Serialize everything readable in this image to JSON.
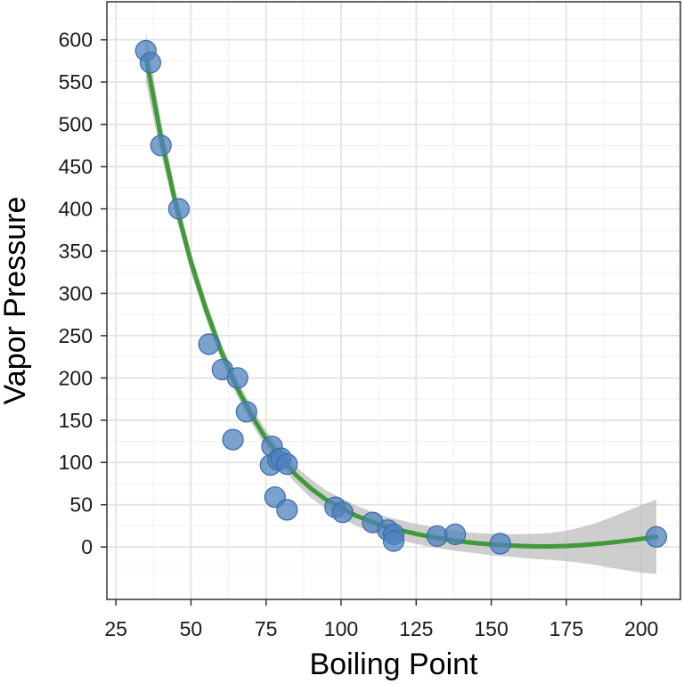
{
  "chart_data": {
    "type": "scatter",
    "title": "",
    "xlabel": "Boiling Point",
    "ylabel": "Vapor Pressure",
    "xlim": [
      22,
      213
    ],
    "ylim": [
      -62,
      645
    ],
    "x_ticks": [
      25,
      50,
      75,
      100,
      125,
      150,
      175,
      200
    ],
    "y_ticks": [
      0,
      50,
      100,
      150,
      200,
      250,
      300,
      350,
      400,
      450,
      500,
      550,
      600
    ],
    "grid": true,
    "legend": "none",
    "points": [
      {
        "x": 35,
        "y": 587
      },
      {
        "x": 36.5,
        "y": 573
      },
      {
        "x": 40,
        "y": 475
      },
      {
        "x": 46,
        "y": 400
      },
      {
        "x": 56,
        "y": 240
      },
      {
        "x": 60.5,
        "y": 210
      },
      {
        "x": 65.5,
        "y": 200
      },
      {
        "x": 64,
        "y": 127
      },
      {
        "x": 68.5,
        "y": 160
      },
      {
        "x": 77,
        "y": 119
      },
      {
        "x": 76.5,
        "y": 97
      },
      {
        "x": 79,
        "y": 103
      },
      {
        "x": 80,
        "y": 105
      },
      {
        "x": 82,
        "y": 98
      },
      {
        "x": 78,
        "y": 59
      },
      {
        "x": 82,
        "y": 44
      },
      {
        "x": 98,
        "y": 47
      },
      {
        "x": 100.5,
        "y": 41
      },
      {
        "x": 110.5,
        "y": 29
      },
      {
        "x": 115.5,
        "y": 20
      },
      {
        "x": 117.5,
        "y": 15
      },
      {
        "x": 117.5,
        "y": 7
      },
      {
        "x": 132,
        "y": 13
      },
      {
        "x": 138,
        "y": 15
      },
      {
        "x": 153,
        "y": 4
      },
      {
        "x": 205,
        "y": 12
      }
    ],
    "smooth_fit": {
      "x": [
        35,
        40,
        45,
        50,
        55,
        60,
        65,
        70,
        75,
        80,
        85,
        90,
        95,
        100,
        105,
        110,
        115,
        120,
        125,
        130,
        135,
        140,
        145,
        150,
        155,
        160,
        165,
        170,
        175,
        180,
        185,
        190,
        195,
        200,
        205
      ],
      "y": [
        580,
        485,
        405,
        337,
        281,
        232,
        191,
        157,
        128,
        105,
        85,
        69,
        56,
        46,
        37,
        30,
        24,
        19.5,
        15.5,
        12,
        9,
        6.5,
        4.5,
        3,
        2,
        1.2,
        0.7,
        0.7,
        1.2,
        2.2,
        3.6,
        5.3,
        7.3,
        9.6,
        12
      ],
      "band_half_width": [
        30,
        20,
        14,
        12,
        11,
        10,
        10,
        10,
        10,
        10,
        10,
        11,
        11,
        12,
        12,
        12,
        12,
        12,
        12,
        12,
        12,
        12,
        12,
        13,
        13,
        14,
        15,
        16,
        18,
        21,
        25,
        30,
        35,
        40,
        44
      ],
      "line_color": "#3f9a3a",
      "band_color": "#bdbdbd"
    },
    "point_color": "#4f81bd"
  }
}
